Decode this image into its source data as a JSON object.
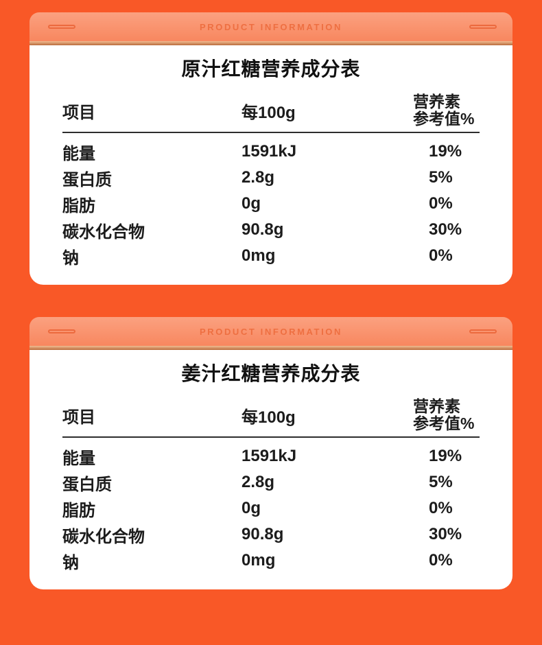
{
  "banner": {
    "label": "PRODUCT INFORMATION"
  },
  "table_headers": {
    "item": "项目",
    "per100g": "每100g",
    "nrv_line1": "营养素",
    "nrv_line2": "参考值%"
  },
  "cards": [
    {
      "title": "原汁红糖营养成分表",
      "rows": [
        {
          "name": "能量",
          "amount": "1591kJ",
          "nrv": "19%"
        },
        {
          "name": "蛋白质",
          "amount": "2.8g",
          "nrv": "5%"
        },
        {
          "name": "脂肪",
          "amount": "0g",
          "nrv": "0%"
        },
        {
          "name": "碳水化合物",
          "amount": "90.8g",
          "nrv": "30%"
        },
        {
          "name": "钠",
          "amount": "0mg",
          "nrv": "0%"
        }
      ]
    },
    {
      "title": "姜汁红糖营养成分表",
      "rows": [
        {
          "name": "能量",
          "amount": "1591kJ",
          "nrv": "19%"
        },
        {
          "name": "蛋白质",
          "amount": "2.8g",
          "nrv": "5%"
        },
        {
          "name": "脂肪",
          "amount": "0g",
          "nrv": "0%"
        },
        {
          "name": "碳水化合物",
          "amount": "90.8g",
          "nrv": "30%"
        },
        {
          "name": "钠",
          "amount": "0mg",
          "nrv": "0%"
        }
      ]
    }
  ],
  "colors": {
    "background": "#F95827",
    "banner_top": "#FBA180",
    "banner_bottom": "#F8875F",
    "banner_text": "#EE6F41",
    "pill_border": "#EC6A3E",
    "ledge_top": "#F1BD92",
    "ledge_bottom": "#BA6C3D",
    "card": "#FFFFFF",
    "text": "#1C1C1C",
    "divider": "#2D2D2D"
  }
}
